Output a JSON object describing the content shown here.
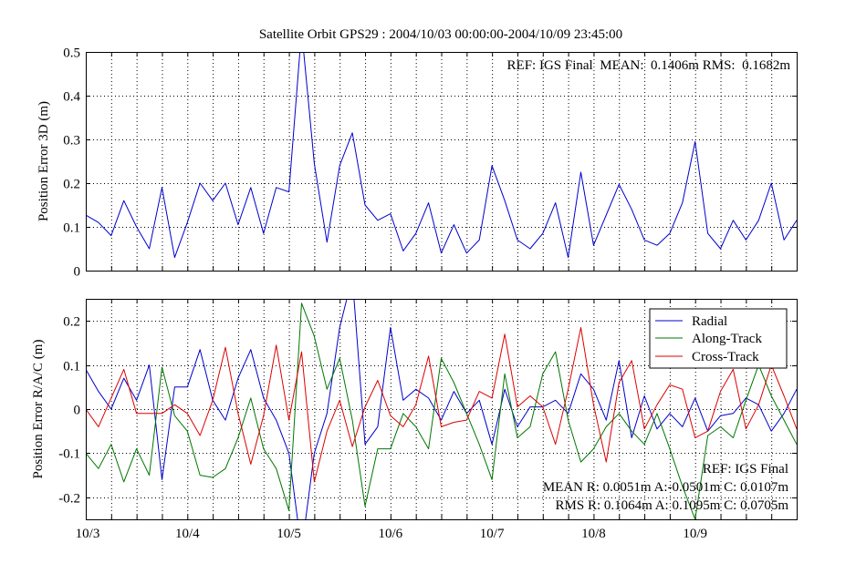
{
  "chart_data": [
    {
      "type": "line",
      "title": "Satellite Orbit GPS29 : 2004/10/03 00:00:00-2004/10/09 23:45:00",
      "ylabel": "Position Error 3D (m)",
      "xlabel": "",
      "ylim": [
        0,
        0.5
      ],
      "xlim_days": [
        0,
        7
      ],
      "yticks": [
        "0",
        "0.1",
        "0.2",
        "0.3",
        "0.4",
        "0.5"
      ],
      "ytick_values": [
        0,
        0.1,
        0.2,
        0.3,
        0.4,
        0.5
      ],
      "grid": true,
      "annotation": "REF: IGS Final  MEAN:  0.1406m RMS:  0.1682m",
      "x_step_hours": 3,
      "series": [
        {
          "name": "3D",
          "color": "#0000cc",
          "values": [
            0.127,
            0.11,
            0.08,
            0.16,
            0.1,
            0.05,
            0.19,
            0.03,
            0.11,
            0.2,
            0.16,
            0.2,
            0.105,
            0.19,
            0.085,
            0.19,
            0.18,
            0.55,
            0.245,
            0.065,
            0.24,
            0.315,
            0.15,
            0.115,
            0.13,
            0.045,
            0.085,
            0.155,
            0.04,
            0.105,
            0.04,
            0.07,
            0.24,
            0.16,
            0.07,
            0.05,
            0.085,
            0.155,
            0.03,
            0.225,
            0.058,
            0.127,
            0.197,
            0.14,
            0.07,
            0.058,
            0.085,
            0.155,
            0.295,
            0.085,
            0.05,
            0.115,
            0.07,
            0.115,
            0.2,
            0.07,
            0.115
          ]
        }
      ]
    },
    {
      "type": "line",
      "ylabel": "Position Error R/A/C (m)",
      "xlabel": "",
      "ylim": [
        -0.25,
        0.25
      ],
      "xlim_days": [
        0,
        7
      ],
      "yticks": [
        "-0.2",
        "-0.1",
        "0",
        "0.1",
        "0.2"
      ],
      "ytick_values": [
        -0.2,
        -0.1,
        0,
        0.1,
        0.2
      ],
      "xticks": [
        "10/3",
        "10/4",
        "10/5",
        "10/6",
        "10/7",
        "10/8",
        "10/9"
      ],
      "xtick_values_days": [
        0,
        1,
        2,
        3,
        4,
        5,
        6
      ],
      "grid": true,
      "legend_position": "top-right",
      "annotations": [
        "REF: IGS Final",
        "MEAN R: 0.0051m A:-0.0501m C: 0.0107m",
        "RMS R: 0.1064m A: 0.1095m C: 0.0705m"
      ],
      "x_step_hours": 3,
      "series": [
        {
          "name": "Radial",
          "color": "#0000cc",
          "values": [
            0.09,
            0.04,
            0.0,
            0.07,
            0.02,
            0.1,
            -0.16,
            0.05,
            0.05,
            0.135,
            0.02,
            -0.025,
            0.07,
            0.135,
            0.025,
            -0.025,
            -0.1,
            -0.32,
            -0.1,
            -0.01,
            0.185,
            0.3,
            -0.08,
            -0.04,
            0.185,
            0.02,
            0.045,
            0.025,
            -0.025,
            0.04,
            -0.01,
            0.02,
            -0.08,
            0.045,
            -0.04,
            0.005,
            0.005,
            0.02,
            -0.01,
            0.08,
            0.045,
            -0.025,
            0.11,
            -0.065,
            0.03,
            -0.045,
            -0.01,
            -0.04,
            0.025,
            -0.05,
            -0.015,
            -0.01,
            0.025,
            0.01,
            -0.05,
            -0.01,
            0.045
          ]
        },
        {
          "name": "Along-Track",
          "color": "#007700",
          "values": [
            -0.1,
            -0.135,
            -0.08,
            -0.165,
            -0.09,
            -0.15,
            0.095,
            -0.015,
            -0.05,
            -0.15,
            -0.155,
            -0.135,
            -0.065,
            0.025,
            -0.09,
            -0.135,
            -0.23,
            0.24,
            0.165,
            0.045,
            0.115,
            -0.025,
            -0.22,
            -0.09,
            -0.09,
            -0.01,
            -0.04,
            -0.09,
            0.115,
            0.06,
            -0.01,
            -0.08,
            -0.16,
            0.08,
            -0.065,
            -0.04,
            0.08,
            0.13,
            -0.025,
            -0.12,
            -0.09,
            -0.04,
            -0.01,
            -0.05,
            -0.08,
            -0.01,
            -0.09,
            -0.175,
            -0.25,
            -0.06,
            -0.04,
            -0.065,
            0.02,
            0.1,
            0.03,
            -0.025,
            -0.08
          ]
        },
        {
          "name": "Cross-Track",
          "color": "#dd0000",
          "values": [
            0.0,
            -0.04,
            0.025,
            0.09,
            -0.01,
            -0.01,
            -0.01,
            0.01,
            -0.01,
            -0.06,
            0.02,
            0.14,
            -0.01,
            -0.125,
            -0.015,
            0.145,
            -0.025,
            0.13,
            -0.165,
            -0.05,
            0.02,
            -0.085,
            0.005,
            0.065,
            -0.015,
            -0.04,
            0.01,
            0.12,
            -0.04,
            -0.03,
            -0.025,
            0.04,
            0.025,
            0.17,
            0.005,
            0.03,
            0.005,
            -0.08,
            0.045,
            0.185,
            0.01,
            -0.12,
            0.06,
            0.11,
            -0.045,
            0.01,
            0.055,
            0.045,
            -0.065,
            -0.05,
            0.04,
            0.09,
            -0.045,
            0.01,
            0.1,
            0.03,
            -0.045
          ]
        }
      ]
    }
  ]
}
